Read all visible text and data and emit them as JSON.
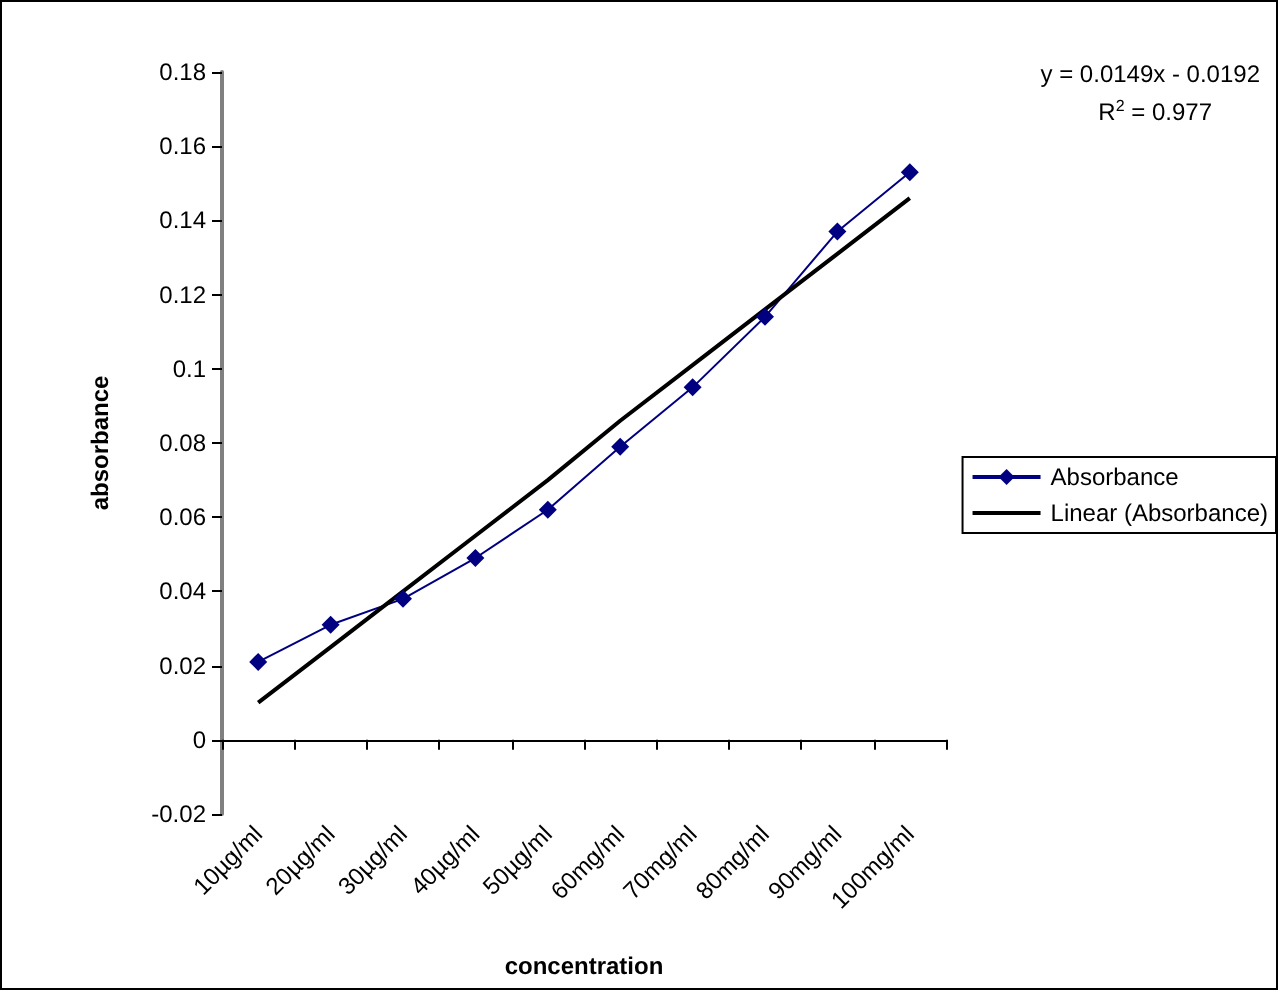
{
  "chart_data": {
    "type": "line",
    "xlabel": "concentration",
    "ylabel": "absorbance",
    "categories": [
      "10µg/ml",
      "20µg/ml",
      "30µg/ml",
      "40µg/ml",
      "50µg/ml",
      "60mg/ml",
      "70mg/ml",
      "80mg/ml",
      "90mg/ml",
      "100mg/ml"
    ],
    "series": [
      {
        "name": "Absorbance",
        "color": "#000080",
        "marker": "diamond",
        "values": [
          0.021,
          0.031,
          0.038,
          0.049,
          0.062,
          0.079,
          0.095,
          0.114,
          0.137,
          0.153
        ]
      },
      {
        "name": "Linear (Absorbance)",
        "color": "#000000",
        "marker": "none",
        "values": [
          0.01,
          0.025,
          0.04,
          0.055,
          0.07,
          0.086,
          0.101,
          0.116,
          0.131,
          0.146
        ]
      }
    ],
    "ylim": [
      -0.02,
      0.18
    ],
    "yticks": [
      -0.02,
      0,
      0.02,
      0.04,
      0.06,
      0.08,
      0.1,
      0.12,
      0.14,
      0.16,
      0.18
    ],
    "legend": "right",
    "annotations": [
      "y = 0.0149x - 0.0192",
      "R$^{2}$ = 0.977"
    ]
  }
}
